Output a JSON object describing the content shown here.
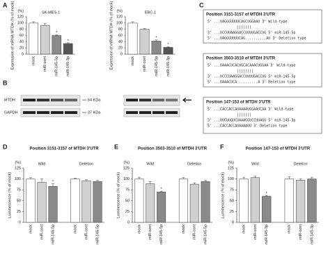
{
  "panel_labels": [
    "A",
    "B",
    "C",
    "D",
    "E",
    "F"
  ],
  "chart_data": [
    {
      "type": "bar",
      "title": "SK-MES-1",
      "y_unit": "(%)",
      "ylabel": "Expression of mRNA MTDH (% of mock)",
      "categories": [
        "mock",
        "miR-cont",
        "miR-145-5p",
        "miR-145-3p"
      ],
      "values": [
        100,
        92,
        60,
        34
      ],
      "errors": [
        3,
        6,
        2,
        2
      ],
      "significance": [
        null,
        null,
        "*",
        "*"
      ],
      "colors": [
        "#ffffff",
        "#d0d0d0",
        "#8a8a8a",
        "#555555"
      ],
      "ylim": [
        0,
        120
      ],
      "yticks": [
        0,
        20,
        40,
        60,
        80,
        100,
        120
      ]
    },
    {
      "type": "bar",
      "title": "EBC-1",
      "y_unit": "(%)",
      "ylabel": "Expression of mRNA MTDH (% of mock)",
      "categories": [
        "mock",
        "miR-cont",
        "miR-145-5p",
        "miR-145-3p"
      ],
      "values": [
        100,
        80,
        42,
        22
      ],
      "errors": [
        3,
        2,
        3,
        2
      ],
      "significance": [
        null,
        null,
        "*",
        "*"
      ],
      "colors": [
        "#ffffff",
        "#d0d0d0",
        "#8a8a8a",
        "#555555"
      ],
      "ylim": [
        0,
        120
      ],
      "yticks": [
        0,
        20,
        40,
        60,
        80,
        100,
        120
      ]
    },
    {
      "type": "bar",
      "title": "Position 3151-3157 of MTDH 3'UTR",
      "y_unit": "(%)",
      "ylabel": "Luminescence (% of mock)",
      "group_labels": [
        "Wild",
        "Deletion"
      ],
      "categories": [
        "mock",
        "miR-cont",
        "miR-145-5p",
        "mock",
        "miR-cont",
        "miR-145-5p"
      ],
      "values": [
        100,
        92,
        83,
        100,
        96,
        94
      ],
      "errors": [
        3,
        8,
        6,
        2,
        2,
        3
      ],
      "significance": [
        null,
        null,
        "*",
        null,
        null,
        null
      ],
      "colors": [
        "#ffffff",
        "#d0d0d0",
        "#8a8a8a",
        "#ffffff",
        "#d0d0d0",
        "#8a8a8a"
      ],
      "ylim": [
        0,
        125
      ],
      "yticks": [
        0,
        25,
        50,
        75,
        100,
        125
      ]
    },
    {
      "type": "bar",
      "title": "Position 3503-3510 of MTDH 3'UTR",
      "y_unit": "(%)",
      "ylabel": "Luminescence (% of mock)",
      "group_labels": [
        "Wild",
        "Deletion"
      ],
      "categories": [
        "mock",
        "miR-cont",
        "miR-145-5p",
        "mock",
        "miR-cont",
        "miR-145-5p"
      ],
      "values": [
        100,
        89,
        70,
        100,
        88,
        94
      ],
      "errors": [
        4,
        5,
        2,
        3,
        3,
        3
      ],
      "significance": [
        null,
        null,
        "*",
        null,
        null,
        null
      ],
      "colors": [
        "#ffffff",
        "#d0d0d0",
        "#8a8a8a",
        "#ffffff",
        "#d0d0d0",
        "#8a8a8a"
      ],
      "ylim": [
        0,
        125
      ],
      "yticks": [
        0,
        25,
        50,
        75,
        100,
        125
      ]
    },
    {
      "type": "bar",
      "title": "Position 147-153 of MTDH 3'UTR",
      "y_unit": "(%)",
      "ylabel": "Luminescence (% of mock)",
      "group_labels": [
        "Wild",
        "Deletion"
      ],
      "categories": [
        "mock",
        "miR-cont",
        "miR-145-3p",
        "mock",
        "miR-cont",
        "miR-145-3p"
      ],
      "values": [
        100,
        103,
        60,
        100,
        97,
        100
      ],
      "errors": [
        4,
        3,
        2,
        5,
        3,
        4
      ],
      "significance": [
        null,
        null,
        "*",
        null,
        null,
        null
      ],
      "colors": [
        "#ffffff",
        "#d0d0d0",
        "#8a8a8a",
        "#ffffff",
        "#d0d0d0",
        "#8a8a8a"
      ],
      "ylim": [
        0,
        125
      ],
      "yticks": [
        0,
        25,
        50,
        75,
        100,
        125
      ]
    }
  ],
  "blot": {
    "rows": [
      "MTDH",
      "GAPDH"
    ],
    "sizes": [
      "64 KDa",
      "37 KDa"
    ]
  },
  "sequence_boxes": [
    {
      "title": "Position 3151-3157 of MTDH 3'UTR",
      "lines": [
        "5' ...UAGGGUUUUCAGCUGGAAU  3' Wild-type",
        "|||||||",
        "3' ...UCCUUAAGGACCUUUUGACCUG  5' miR-145-5p",
        "5' ...UAGGGUUUUCAG..........AU  3' Deletion type"
      ]
    },
    {
      "title": "Position 3503-3510 of MTDH 3'UTR",
      "lines": [
        "5' ...UAAACUCACUGCACAAACUGGAA  3' Wild-type",
        "||||||||",
        "3' ...UCCCUAAGGACCUUUUGACCUG  5' miR-145-5p",
        "5' ...UAAACUCA..........A  3' Deletion type"
      ]
    },
    {
      "title": "Position 147-153 of MTDH 3'UTR",
      "lines": [
        "5' ...CACCACCAUAAAAUGGAAUCAA  3' Wild-type",
        "|||||||",
        "3' ...UUCUUGUCUAAAGGUCCUUAGG  5' miR-145-3p",
        "5' ...CACCACCAUAAAAUU  3' Deletion type"
      ]
    }
  ]
}
